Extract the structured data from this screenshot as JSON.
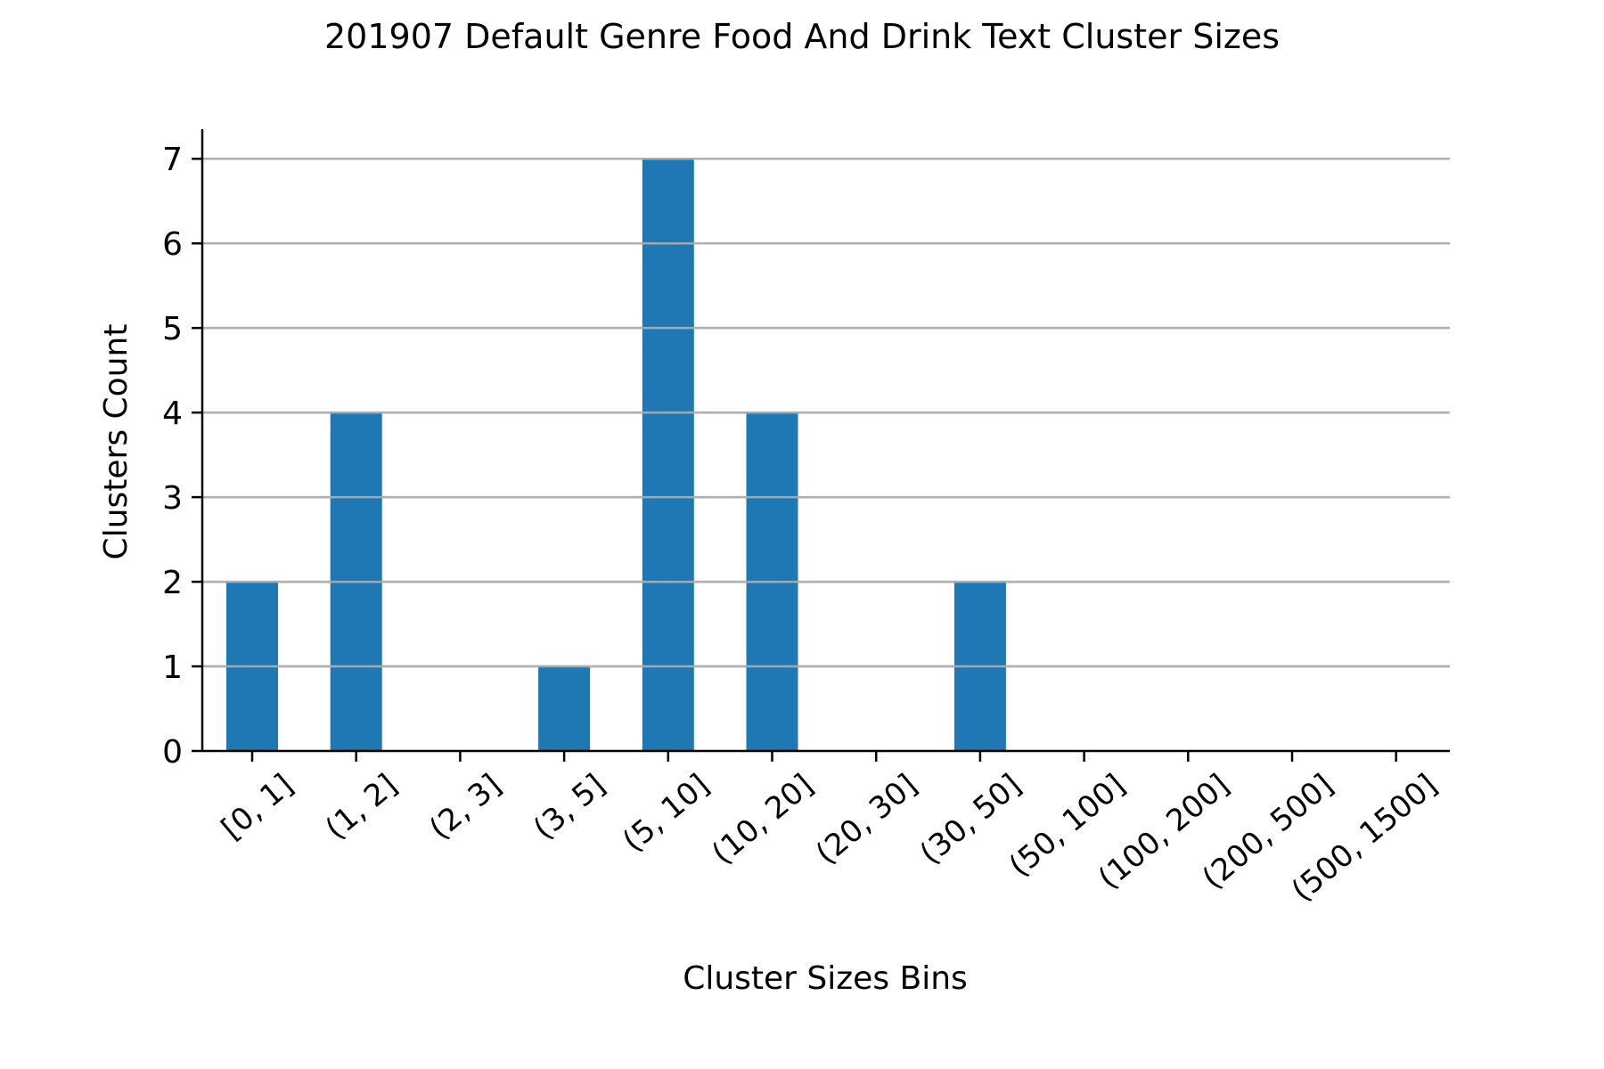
{
  "chart_data": {
    "type": "bar",
    "title": "201907 Default Genre Food And Drink Text Cluster Sizes",
    "xlabel": "Cluster Sizes Bins",
    "ylabel": "Clusters Count",
    "categories": [
      "[0, 1]",
      "(1, 2]",
      "(2, 3]",
      "(3, 5]",
      "(5, 10]",
      "(10, 20]",
      "(20, 30]",
      "(30, 50]",
      "(50, 100]",
      "(100, 200]",
      "(200, 500]",
      "(500, 1500]"
    ],
    "values": [
      2,
      4,
      0,
      1,
      7,
      4,
      0,
      2,
      0,
      0,
      0,
      0
    ],
    "ylim": [
      0,
      7.35
    ],
    "yticks": [
      0,
      1,
      2,
      3,
      4,
      5,
      6,
      7
    ],
    "grid": "y",
    "legend": "none",
    "bar_color": "#1f77b4",
    "grid_color": "#b0b0b0"
  }
}
